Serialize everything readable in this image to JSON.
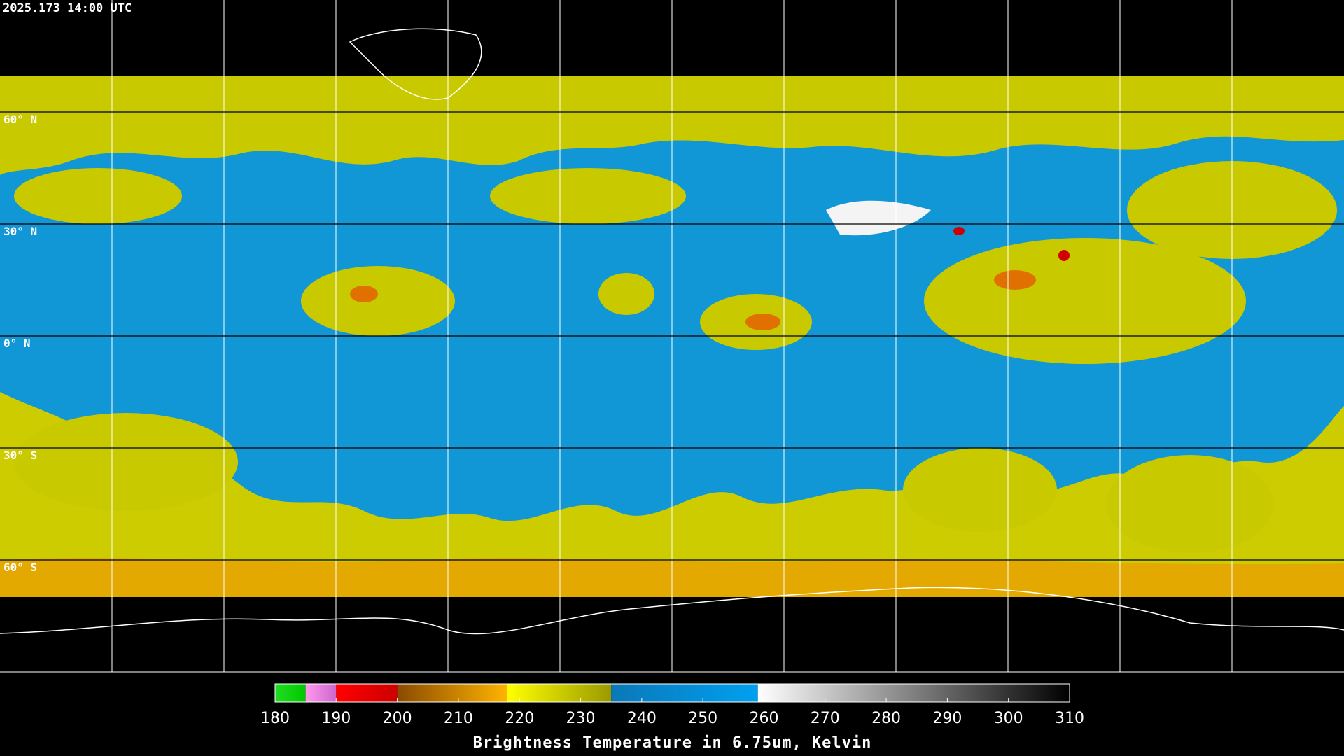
{
  "timestamp": "2025.173 14:00 UTC",
  "lat_lines": [
    {
      "value": 60,
      "label": "60° N"
    },
    {
      "value": 30,
      "label": "30° N"
    },
    {
      "value": 0,
      "label": "0° N"
    },
    {
      "value": -30,
      "label": "30° S"
    },
    {
      "value": -60,
      "label": "60° S"
    }
  ],
  "colorbar": {
    "title": "Brightness Temperature in 6.75um, Kelvin",
    "range": [
      180,
      310
    ],
    "ticks": [
      180,
      190,
      200,
      210,
      220,
      230,
      240,
      250,
      260,
      270,
      280,
      290,
      300,
      310
    ],
    "segments": [
      {
        "from": 180,
        "to": 185,
        "colors": [
          "#22dd22",
          "#00c800"
        ]
      },
      {
        "from": 185,
        "to": 190,
        "colors": [
          "#ff99ee",
          "#cc66cc"
        ]
      },
      {
        "from": 190,
        "to": 200,
        "colors": [
          "#ff0000",
          "#cc0000"
        ]
      },
      {
        "from": 200,
        "to": 218,
        "colors": [
          "#8a4a00",
          "#ffb400"
        ]
      },
      {
        "from": 218,
        "to": 235,
        "colors": [
          "#ffff00",
          "#9a9a00"
        ]
      },
      {
        "from": 235,
        "to": 259,
        "colors": [
          "#0a78b8",
          "#00a0f0"
        ]
      },
      {
        "from": 259,
        "to": 310,
        "colors": [
          "#ffffff",
          "#000000"
        ]
      }
    ]
  }
}
